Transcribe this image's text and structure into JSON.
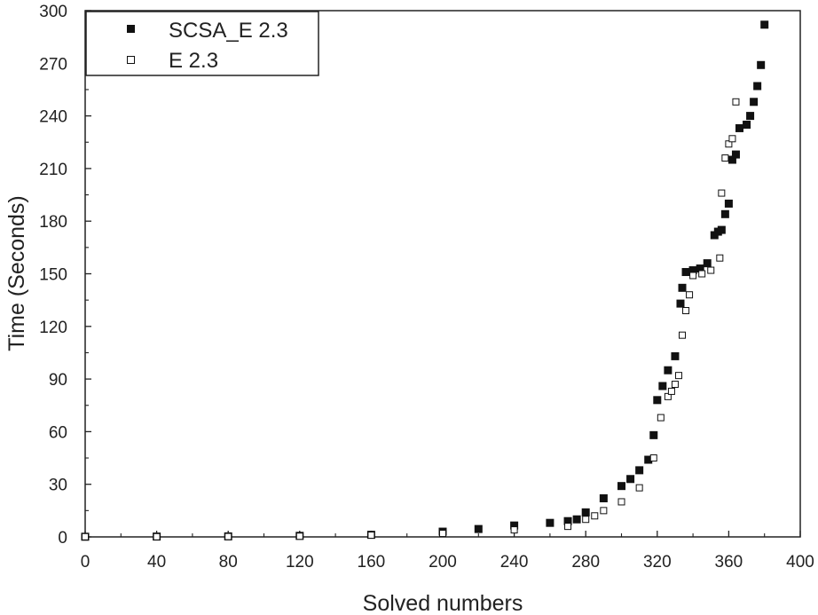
{
  "chart_data": {
    "type": "scatter",
    "title": "",
    "xlabel": "Solved numbers",
    "ylabel": "Time (Seconds)",
    "xlim": [
      0,
      400
    ],
    "ylim": [
      0,
      300
    ],
    "xticks": [
      0,
      40,
      80,
      120,
      160,
      200,
      240,
      280,
      320,
      360,
      400
    ],
    "yticks": [
      0,
      30,
      60,
      90,
      120,
      150,
      180,
      210,
      240,
      270,
      300
    ],
    "grid": false,
    "legend_position": "top-left",
    "series": [
      {
        "name": "SCSA_E 2.3",
        "marker": "filled-square",
        "color": "#111111",
        "x": [
          0,
          40,
          80,
          120,
          160,
          200,
          220,
          240,
          260,
          270,
          275,
          280,
          290,
          300,
          305,
          310,
          315,
          318,
          320,
          323,
          326,
          330,
          333,
          334,
          336,
          340,
          344,
          348,
          352,
          354,
          356,
          358,
          360,
          362,
          364,
          366,
          370,
          372,
          374,
          376,
          378,
          380
        ],
        "y": [
          0.1,
          0.2,
          0.3,
          0.6,
          1.2,
          3,
          4.5,
          6.5,
          8,
          9,
          10,
          14,
          22,
          29,
          33,
          38,
          44,
          58,
          78,
          86,
          95,
          103,
          133,
          142,
          151,
          152,
          153,
          156,
          172,
          174,
          175,
          184,
          190,
          215,
          218,
          233,
          235,
          240,
          248,
          257,
          269,
          292
        ]
      },
      {
        "name": "E 2.3",
        "marker": "open-square",
        "color": "#111111",
        "x": [
          0,
          40,
          80,
          120,
          160,
          200,
          240,
          270,
          280,
          285,
          290,
          300,
          310,
          318,
          322,
          326,
          328,
          330,
          332,
          334,
          336,
          338,
          340,
          345,
          350,
          355,
          356,
          358,
          360,
          362,
          364
        ],
        "y": [
          0.1,
          0.1,
          0.2,
          0.4,
          1,
          2,
          4,
          6,
          10,
          12,
          15,
          20,
          28,
          45,
          68,
          80,
          83,
          87,
          92,
          115,
          129,
          138,
          149,
          150,
          152,
          159,
          196,
          216,
          224,
          227,
          248
        ]
      }
    ]
  }
}
